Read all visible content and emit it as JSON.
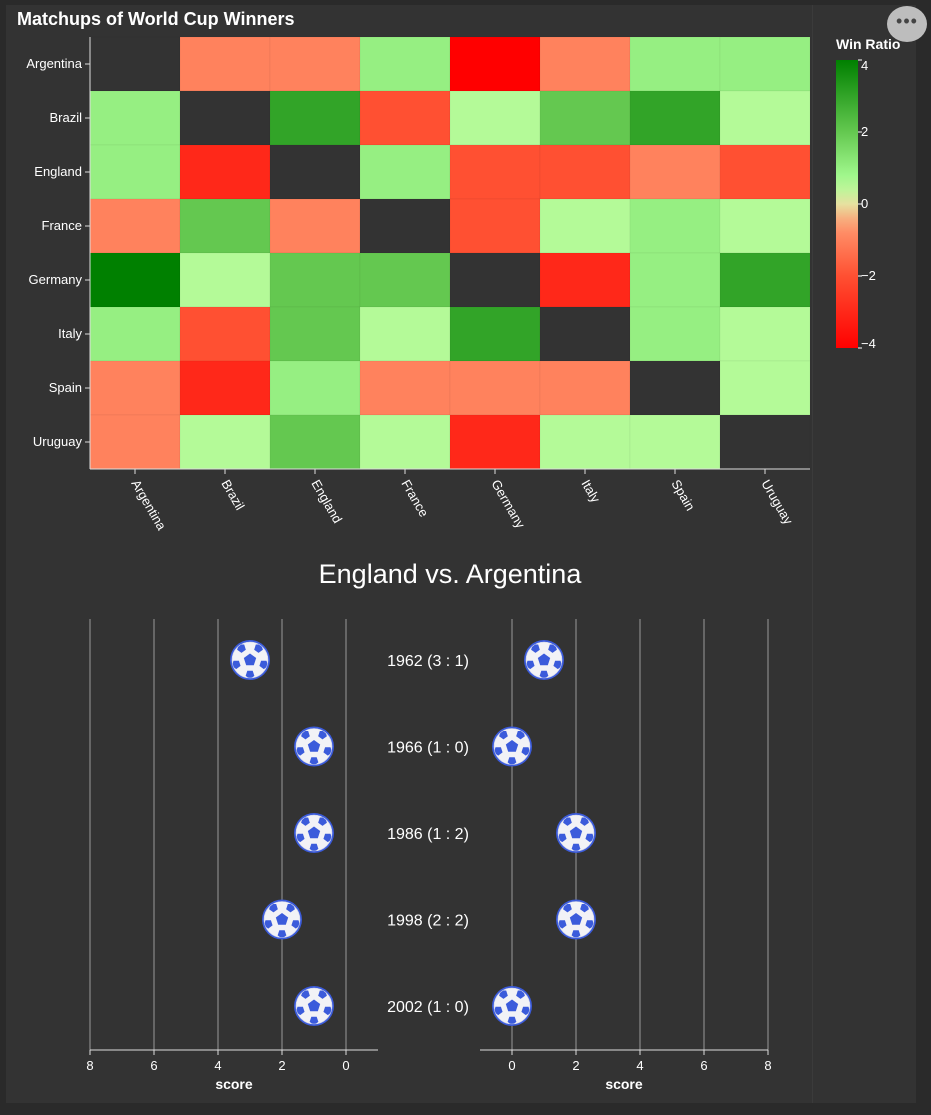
{
  "title": "Matchups of World Cup Winners",
  "menu_icon": "more-horizontal-icon",
  "colors": {
    "background": "#2a2a2a",
    "panel": "#333333",
    "diagonal": "#333333",
    "ball": "#3b5bdb"
  },
  "chart_data": [
    {
      "type": "heatmap",
      "title": "Matchups of World Cup Winners",
      "rows": [
        "Argentina",
        "Brazil",
        "England",
        "France",
        "Germany",
        "Italy",
        "Spain",
        "Uruguay"
      ],
      "columns": [
        "Argentina",
        "Brazil",
        "England",
        "France",
        "Germany",
        "Italy",
        "Spain",
        "Uruguay"
      ],
      "values": [
        [
          null,
          -1.0,
          -1.0,
          1.0,
          -4.0,
          -1.0,
          1.0,
          1.0
        ],
        [
          1.0,
          null,
          3.0,
          -2.0,
          0.5,
          2.0,
          3.0,
          0.5
        ],
        [
          1.0,
          -3.0,
          null,
          1.0,
          -2.0,
          -2.0,
          -1.0,
          -2.0
        ],
        [
          -1.0,
          2.0,
          -1.0,
          null,
          -2.0,
          0.5,
          1.0,
          0.5
        ],
        [
          4.0,
          0.5,
          2.0,
          2.0,
          null,
          -3.0,
          1.0,
          3.0
        ],
        [
          1.0,
          -2.0,
          2.0,
          0.5,
          3.0,
          null,
          1.0,
          0.5
        ],
        [
          -1.0,
          -3.0,
          1.0,
          -1.0,
          -1.0,
          -1.0,
          null,
          0.5
        ],
        [
          -1.0,
          0.5,
          2.0,
          0.5,
          -3.0,
          0.5,
          0.5,
          null
        ]
      ],
      "legend": {
        "title": "Win Ratio",
        "ticks": [
          4,
          2,
          0,
          -2,
          -4
        ],
        "tick_labels": [
          "4",
          "2",
          "0",
          "−2",
          "−4"
        ],
        "domain": [
          -4,
          4
        ],
        "placement": "right"
      }
    },
    {
      "type": "scatter",
      "title": "England vs. Argentina",
      "matches": [
        {
          "year": "1962",
          "label": "1962 (3 : 1)",
          "left_score": 3,
          "right_score": 1
        },
        {
          "year": "1966",
          "label": "1966 (1 : 0)",
          "left_score": 1,
          "right_score": 0
        },
        {
          "year": "1986",
          "label": "1986 (1 : 2)",
          "left_score": 1,
          "right_score": 2
        },
        {
          "year": "1998",
          "label": "1998 (2 : 2)",
          "left_score": 2,
          "right_score": 2
        },
        {
          "year": "2002",
          "label": "2002 (1 : 0)",
          "left_score": 1,
          "right_score": 0
        }
      ],
      "left_axis": {
        "title": "score",
        "domain": [
          -1,
          8
        ],
        "reversed": true,
        "ticks": [
          8,
          6,
          4,
          2,
          0
        ],
        "grid": true
      },
      "right_axis": {
        "title": "score",
        "domain": [
          -1,
          8
        ],
        "reversed": false,
        "ticks": [
          0,
          2,
          4,
          6,
          8
        ],
        "grid": true
      },
      "marker": "soccer-ball-icon"
    }
  ]
}
